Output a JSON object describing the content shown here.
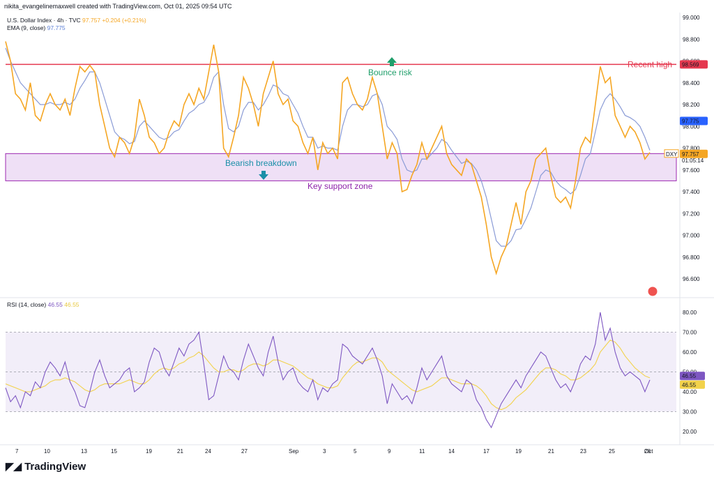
{
  "header": {
    "credit": "nikita_evangelinemaxwell created with TradingView.com, Oct 01, 2025 09:54 UTC",
    "symbol_line": "U.S. Dollar Index · 4h · TVC",
    "last_price": "97.757",
    "change": "+0.204 (+0.21%)",
    "ema_label": "EMA (9, close)",
    "ema_value": "97.775",
    "rsi_label": "RSI (14, close)",
    "rsi_value": "46.55",
    "rsi_ma_value": "46.55"
  },
  "footer": {
    "brand": "TradingView"
  },
  "colors": {
    "price": "#f5a623",
    "ema": "#8a9bd6",
    "resistance": "#e5384f",
    "zone_fill": "#e9d5f3",
    "zone_border": "#9c27b0",
    "rsi": "#7e57c2",
    "rsi_ma": "#f2d24b",
    "annotation_green": "#1f9e6a",
    "annotation_teal": "#1a8fa8"
  },
  "chart_data": [
    {
      "type": "line",
      "title": "U.S. Dollar Index · 4h · TVC",
      "ylim": [
        96.4,
        99.0
      ],
      "y_ticks": [
        "99.000",
        "98.800",
        "98.600",
        "98.400",
        "98.200",
        "98.000",
        "97.800",
        "97.600",
        "97.400",
        "97.200",
        "97.000",
        "96.800",
        "96.600"
      ],
      "x_ticks": [
        "7",
        "10",
        "13",
        "15",
        "19",
        "21",
        "24",
        "27",
        "Sep",
        "3",
        "5",
        "9",
        "11",
        "14",
        "17",
        "19",
        "21",
        "23",
        "25",
        "28",
        "Oct"
      ],
      "price_labels": {
        "resistance": "98.569",
        "ema": "97.775",
        "price": "97.757",
        "countdown": "01:05:14",
        "symbol": "DXY"
      },
      "annotations": {
        "recent_high": "Recent high",
        "bounce_risk": "Bounce risk",
        "bearish_breakdown": "Bearish breakdown",
        "support_zone": "Key support zone"
      },
      "resistance_level": 98.569,
      "support_zone": [
        97.5,
        97.75
      ],
      "series": [
        {
          "name": "U.S. Dollar Index",
          "values": [
            98.78,
            98.6,
            98.3,
            98.25,
            98.15,
            98.4,
            98.1,
            98.05,
            98.2,
            98.3,
            98.2,
            98.15,
            98.25,
            98.1,
            98.35,
            98.55,
            98.5,
            98.56,
            98.5,
            98.2,
            98.0,
            97.8,
            97.72,
            97.9,
            97.85,
            97.75,
            97.9,
            98.25,
            98.1,
            97.9,
            97.85,
            97.75,
            97.8,
            97.95,
            98.05,
            98.0,
            98.2,
            98.3,
            98.2,
            98.35,
            98.25,
            98.5,
            98.75,
            98.5,
            97.8,
            97.72,
            97.9,
            98.1,
            98.45,
            98.35,
            98.2,
            98.0,
            98.3,
            98.45,
            98.6,
            98.3,
            98.2,
            98.25,
            98.05,
            98.0,
            97.85,
            97.75,
            97.9,
            97.6,
            97.85,
            97.75,
            97.8,
            97.7,
            98.4,
            98.45,
            98.3,
            98.2,
            98.15,
            98.25,
            98.45,
            98.3,
            98.0,
            97.7,
            97.85,
            97.75,
            97.4,
            97.42,
            97.55,
            97.65,
            97.85,
            97.7,
            97.8,
            97.9,
            98.0,
            97.75,
            97.65,
            97.6,
            97.55,
            97.7,
            97.65,
            97.5,
            97.35,
            97.1,
            96.8,
            96.65,
            96.8,
            96.9,
            97.1,
            97.3,
            97.1,
            97.4,
            97.5,
            97.7,
            97.75,
            97.8,
            97.55,
            97.35,
            97.3,
            97.35,
            97.25,
            97.5,
            97.8,
            97.9,
            97.85,
            98.2,
            98.55,
            98.4,
            98.45,
            98.1,
            98.0,
            97.9,
            98.0,
            97.95,
            97.85,
            97.7,
            97.76
          ]
        },
        {
          "name": "EMA (9, close)",
          "values": [
            98.72,
            98.6,
            98.5,
            98.4,
            98.35,
            98.3,
            98.25,
            98.2,
            98.2,
            98.22,
            98.2,
            98.2,
            98.22,
            98.2,
            98.25,
            98.35,
            98.42,
            98.5,
            98.5,
            98.4,
            98.25,
            98.1,
            97.95,
            97.9,
            97.88,
            97.84,
            97.86,
            98.0,
            98.05,
            98.0,
            97.95,
            97.9,
            97.88,
            97.9,
            97.95,
            97.97,
            98.05,
            98.12,
            98.15,
            98.2,
            98.22,
            98.3,
            98.45,
            98.5,
            98.2,
            97.98,
            97.95,
            98.0,
            98.15,
            98.22,
            98.22,
            98.15,
            98.2,
            98.28,
            98.38,
            98.36,
            98.3,
            98.28,
            98.2,
            98.12,
            98.0,
            97.9,
            97.9,
            97.8,
            97.82,
            97.8,
            97.8,
            97.78,
            98.0,
            98.15,
            98.2,
            98.2,
            98.18,
            98.2,
            98.28,
            98.3,
            98.2,
            98.0,
            97.95,
            97.88,
            97.7,
            97.6,
            97.58,
            97.6,
            97.7,
            97.7,
            97.75,
            97.8,
            97.88,
            97.85,
            97.78,
            97.72,
            97.66,
            97.68,
            97.66,
            97.6,
            97.5,
            97.35,
            97.15,
            96.95,
            96.9,
            96.9,
            96.95,
            97.05,
            97.06,
            97.15,
            97.25,
            97.4,
            97.55,
            97.6,
            97.58,
            97.5,
            97.45,
            97.42,
            97.38,
            97.42,
            97.55,
            97.7,
            97.75,
            97.95,
            98.15,
            98.25,
            98.3,
            98.25,
            98.18,
            98.1,
            98.08,
            98.05,
            98.0,
            97.9,
            97.78
          ]
        }
      ]
    },
    {
      "type": "line",
      "title": "RSI (14, close)",
      "ylim": [
        15,
        85
      ],
      "y_ticks": [
        "80.00",
        "70.00",
        "60.00",
        "50.00",
        "40.00",
        "30.00",
        "20.00"
      ],
      "price_labels": {
        "rsi": "46.55",
        "rsi_ma": "46.55"
      },
      "bands": [
        30,
        50,
        70
      ],
      "series": [
        {
          "name": "RSI (14, close)",
          "values": [
            42,
            35,
            38,
            32,
            40,
            38,
            45,
            42,
            50,
            55,
            52,
            48,
            55,
            45,
            40,
            33,
            32,
            40,
            50,
            56,
            48,
            42,
            44,
            46,
            50,
            52,
            40,
            42,
            45,
            55,
            62,
            60,
            52,
            48,
            55,
            62,
            58,
            64,
            66,
            70,
            54,
            36,
            38,
            48,
            58,
            52,
            50,
            46,
            56,
            64,
            58,
            52,
            48,
            60,
            68,
            55,
            46,
            50,
            52,
            45,
            42,
            40,
            46,
            36,
            42,
            40,
            44,
            46,
            64,
            62,
            58,
            56,
            54,
            58,
            62,
            56,
            48,
            34,
            44,
            40,
            36,
            38,
            34,
            42,
            52,
            46,
            50,
            54,
            58,
            48,
            44,
            42,
            40,
            46,
            44,
            36,
            32,
            26,
            22,
            28,
            34,
            38,
            42,
            46,
            42,
            48,
            52,
            56,
            60,
            58,
            52,
            46,
            42,
            44,
            40,
            46,
            54,
            58,
            56,
            64,
            80,
            66,
            72,
            60,
            52,
            48,
            50,
            48,
            46,
            40,
            46
          ]
        },
        {
          "name": "RSI MA",
          "values": [
            44,
            43,
            42,
            41,
            40,
            40,
            41,
            42,
            43,
            45,
            46,
            46,
            47,
            46,
            45,
            43,
            41,
            40,
            41,
            43,
            44,
            44,
            44,
            44,
            45,
            46,
            45,
            44,
            44,
            46,
            49,
            51,
            52,
            51,
            52,
            54,
            55,
            57,
            58,
            60,
            58,
            55,
            52,
            50,
            50,
            51,
            51,
            50,
            51,
            53,
            54,
            54,
            53,
            54,
            56,
            56,
            55,
            54,
            53,
            51,
            49,
            47,
            46,
            44,
            43,
            42,
            42,
            43,
            47,
            50,
            53,
            55,
            55,
            56,
            57,
            57,
            55,
            51,
            49,
            47,
            45,
            43,
            41,
            40,
            41,
            42,
            43,
            45,
            47,
            47,
            46,
            45,
            44,
            44,
            44,
            43,
            41,
            38,
            34,
            32,
            31,
            32,
            34,
            37,
            39,
            41,
            44,
            47,
            50,
            52,
            52,
            51,
            49,
            48,
            46,
            46,
            47,
            49,
            51,
            54,
            60,
            63,
            66,
            65,
            62,
            58,
            55,
            52,
            50,
            48,
            47
          ]
        }
      ]
    }
  ]
}
